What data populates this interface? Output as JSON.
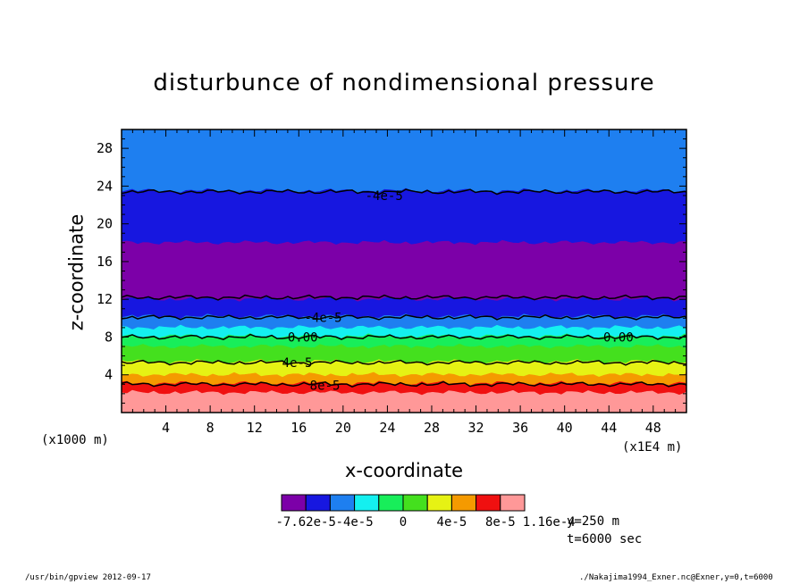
{
  "chart_data": {
    "type": "heatmap",
    "title": "disturbunce of nondimensional pressure",
    "xlabel": "x-coordinate",
    "ylabel": "z-coordinate",
    "x_unit_left": "(x1000 m)",
    "x_unit_right": "(x1E4 m)",
    "xlim": [
      0,
      51
    ],
    "ylim": [
      0,
      30
    ],
    "xticks": [
      4,
      8,
      12,
      16,
      20,
      24,
      28,
      32,
      36,
      40,
      44,
      48
    ],
    "yticks": [
      4,
      8,
      12,
      16,
      20,
      24,
      28
    ],
    "color_levels": [
      "#7c00a8",
      "#1717e0",
      "#1e7ff0",
      "#14f0f0",
      "#18ee5a",
      "#44e01e",
      "#e6f214",
      "#f59a00",
      "#f01010",
      "#ff9898"
    ],
    "colorbar_labels": [
      "-7.62e-5",
      "-4e-5",
      "0",
      "4e-5",
      "8e-5",
      "1.16e-4"
    ],
    "bands": [
      {
        "z_bottom": 23.5,
        "z_top": 30.0,
        "color": "#1e7ff0"
      },
      {
        "z_bottom": 18.0,
        "z_top": 23.5,
        "color": "#1717e0"
      },
      {
        "z_bottom": 12.0,
        "z_top": 18.0,
        "color": "#7c00a8"
      },
      {
        "z_bottom": 10.2,
        "z_top": 12.0,
        "color": "#1717e0"
      },
      {
        "z_bottom": 9.0,
        "z_top": 10.2,
        "color": "#1e7ff0"
      },
      {
        "z_bottom": 8.1,
        "z_top": 9.0,
        "color": "#14f0f0"
      },
      {
        "z_bottom": 7.0,
        "z_top": 8.1,
        "color": "#18ee5a"
      },
      {
        "z_bottom": 5.4,
        "z_top": 7.0,
        "color": "#44e01e"
      },
      {
        "z_bottom": 4.0,
        "z_top": 5.4,
        "color": "#e6f214"
      },
      {
        "z_bottom": 3.1,
        "z_top": 4.0,
        "color": "#f59a00"
      },
      {
        "z_bottom": 2.1,
        "z_top": 3.1,
        "color": "#f01010"
      },
      {
        "z_bottom": 0.0,
        "z_top": 2.1,
        "color": "#ff9898"
      }
    ],
    "contour_lines": [
      23.4,
      12.2,
      10.1,
      8.0,
      5.3,
      3.0
    ],
    "contour_labels": [
      {
        "text": "-4e-5",
        "x": 22.0,
        "z": 23.0
      },
      {
        "text": "-4e-5",
        "x": 16.5,
        "z": 10.1
      },
      {
        "text": "0.00",
        "x": 15.0,
        "z": 8.0
      },
      {
        "text": "0.00",
        "x": 43.5,
        "z": 8.0
      },
      {
        "text": "4e-5",
        "x": 14.5,
        "z": 5.3
      },
      {
        "text": "8e-5",
        "x": 17.0,
        "z": 2.9
      }
    ]
  },
  "info": {
    "y_slice": "y=250 m",
    "time": "t=6000 sec"
  },
  "footer": {
    "left": "/usr/bin/gpview   2012-09-17",
    "right": "./Nakajima1994_Exner.nc@Exner,y=0,t=6000"
  }
}
